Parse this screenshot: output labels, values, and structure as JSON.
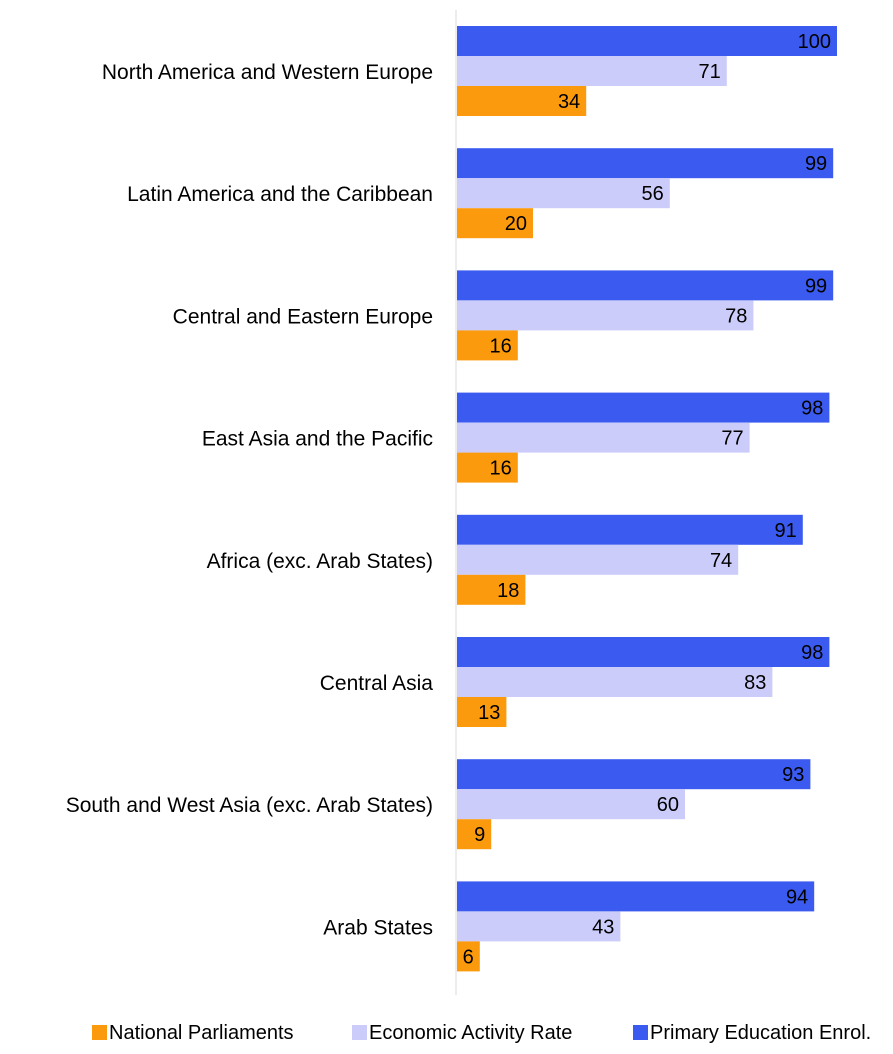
{
  "chart_data": {
    "type": "bar",
    "orientation": "horizontal",
    "categories": [
      "North America and Western Europe",
      "Latin America and the Caribbean",
      "Central and Eastern Europe",
      "East Asia and the Pacific",
      "Africa (exc. Arab States)",
      "Central Asia",
      "South and West Asia (exc. Arab States)",
      "Arab States"
    ],
    "series": [
      {
        "name": "Primary Education Enrol.",
        "color": "#3b5bf0",
        "values": [
          100,
          99,
          99,
          98,
          91,
          98,
          93,
          94
        ]
      },
      {
        "name": "Economic Activity Rate",
        "color": "#ccccfa",
        "values": [
          71,
          56,
          78,
          77,
          74,
          83,
          60,
          43
        ]
      },
      {
        "name": "National Parliaments",
        "color": "#fb9a0c",
        "values": [
          34,
          20,
          16,
          16,
          18,
          13,
          9,
          6
        ]
      }
    ],
    "legend": {
      "placement": "bottom",
      "order": [
        "National Parliaments",
        "Economic Activity Rate",
        "Primary Education Enrol."
      ]
    },
    "xlim": [
      0,
      100
    ],
    "grid": false,
    "title": "",
    "xlabel": "",
    "ylabel": "",
    "axis_color": "#d9d9d9"
  }
}
